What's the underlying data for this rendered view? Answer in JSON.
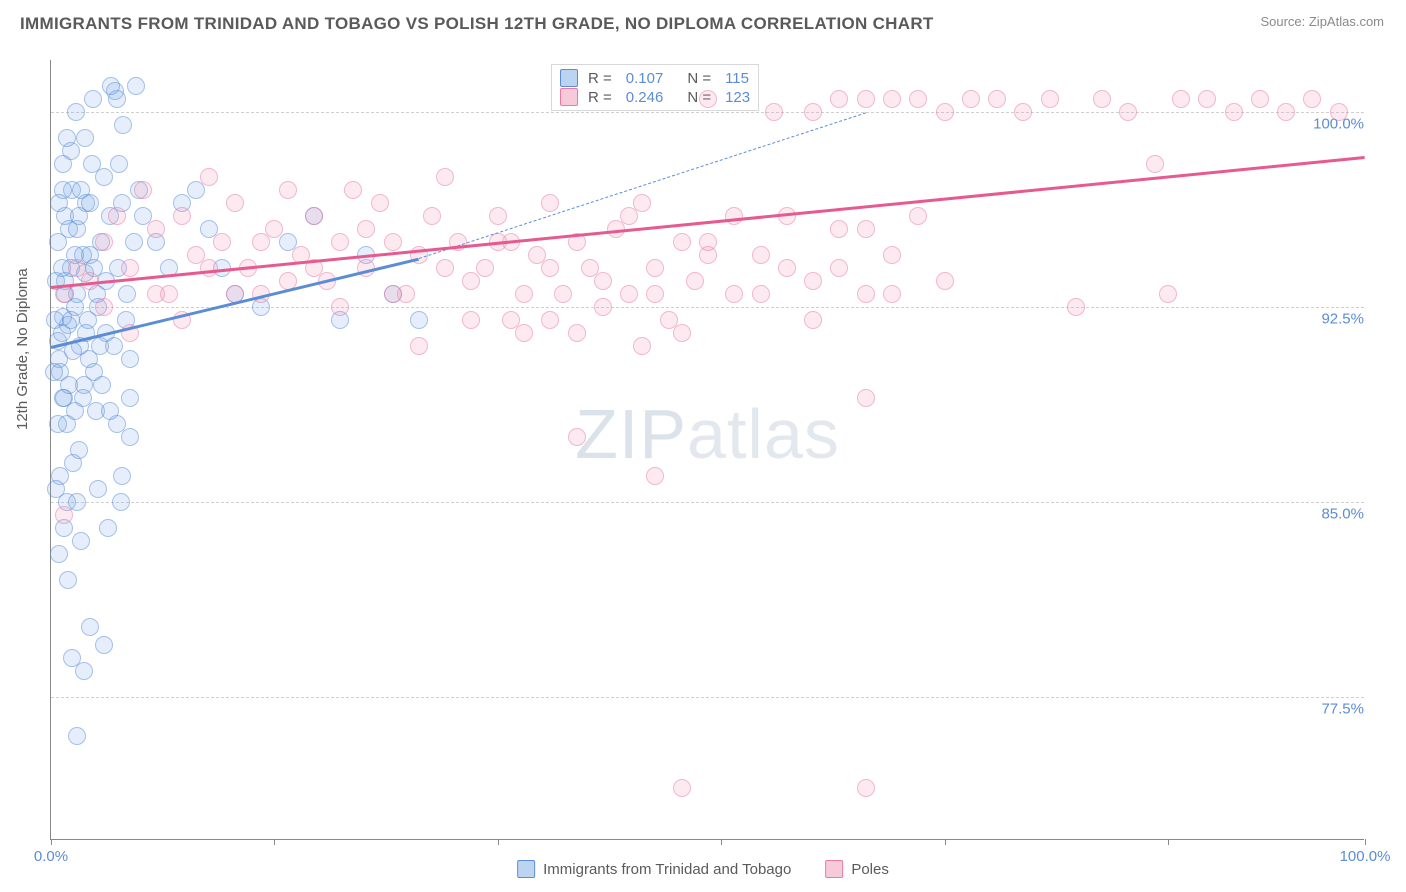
{
  "title": "IMMIGRANTS FROM TRINIDAD AND TOBAGO VS POLISH 12TH GRADE, NO DIPLOMA CORRELATION CHART",
  "source": "Source: ZipAtlas.com",
  "watermark_left": "ZIP",
  "watermark_right": "atlas",
  "chart": {
    "type": "scatter",
    "ylabel": "12th Grade, No Diploma",
    "xlim": [
      0,
      100
    ],
    "ylim": [
      72,
      102
    ],
    "xtick_positions": [
      0,
      17,
      34,
      51,
      68,
      85,
      100
    ],
    "xtick_labels": {
      "0": "0.0%",
      "100": "100.0%"
    },
    "yticks": [
      77.5,
      85.0,
      92.5,
      100.0
    ],
    "ytick_labels": [
      "77.5%",
      "85.0%",
      "92.5%",
      "100.0%"
    ],
    "grid_color": "#cfcfcf",
    "background_color": "#ffffff",
    "axis_color": "#888888",
    "tick_label_color": "#5b8dd6",
    "label_color": "#5a5a5a",
    "label_fontsize": 15,
    "title_fontsize": 17,
    "marker_radius": 9,
    "marker_opacity": 0.55,
    "line_width": 2.5
  },
  "series": [
    {
      "id": "a",
      "name": "Immigrants from Trinidad and Tobago",
      "color": "#5b8dd6",
      "fill": "rgba(120,170,230,0.35)",
      "R": "0.107",
      "N": "115",
      "trend": {
        "x1": 0,
        "y1": 91.0,
        "x2": 28,
        "y2": 94.4,
        "dash_x2": 62,
        "dash_y2": 100.0
      },
      "points": [
        [
          0.5,
          91.2
        ],
        [
          0.7,
          90.0
        ],
        [
          0.9,
          92.1
        ],
        [
          1.1,
          93.5
        ],
        [
          1.0,
          89.0
        ],
        [
          1.3,
          91.8
        ],
        [
          1.5,
          94.0
        ],
        [
          1.2,
          88.0
        ],
        [
          1.8,
          92.5
        ],
        [
          0.6,
          90.5
        ],
        [
          2.0,
          93.0
        ],
        [
          1.4,
          95.5
        ],
        [
          1.6,
          97.0
        ],
        [
          1.1,
          96.0
        ],
        [
          0.8,
          94.0
        ],
        [
          2.2,
          91.0
        ],
        [
          2.5,
          89.5
        ],
        [
          2.8,
          92.0
        ],
        [
          3.0,
          94.5
        ],
        [
          3.3,
          90.0
        ],
        [
          3.5,
          93.0
        ],
        [
          3.8,
          95.0
        ],
        [
          4.0,
          97.5
        ],
        [
          4.2,
          91.5
        ],
        [
          4.5,
          96.0
        ],
        [
          4.9,
          100.8
        ],
        [
          5.2,
          98.0
        ],
        [
          5.5,
          99.5
        ],
        [
          5.8,
          93.0
        ],
        [
          6.0,
          90.5
        ],
        [
          6.3,
          95.0
        ],
        [
          6.7,
          97.0
        ],
        [
          5.0,
          100.5
        ],
        [
          4.6,
          101.0
        ],
        [
          3.2,
          100.5
        ],
        [
          2.6,
          99.0
        ],
        [
          1.9,
          100.0
        ],
        [
          1.5,
          98.5
        ],
        [
          0.9,
          97.0
        ],
        [
          1.2,
          85.0
        ],
        [
          1.7,
          86.5
        ],
        [
          2.1,
          87.0
        ],
        [
          0.7,
          86.0
        ],
        [
          1.0,
          84.0
        ],
        [
          0.6,
          83.0
        ],
        [
          1.3,
          82.0
        ],
        [
          0.4,
          85.5
        ],
        [
          1.8,
          88.5
        ],
        [
          0.5,
          88.0
        ],
        [
          0.9,
          89.0
        ],
        [
          2.4,
          94.5
        ],
        [
          2.7,
          96.5
        ],
        [
          3.1,
          98.0
        ],
        [
          3.4,
          88.5
        ],
        [
          3.7,
          91.0
        ],
        [
          5.0,
          88.0
        ],
        [
          5.4,
          86.0
        ],
        [
          6.0,
          87.5
        ],
        [
          2.0,
          85.0
        ],
        [
          2.3,
          83.5
        ],
        [
          4.3,
          84.0
        ],
        [
          3.6,
          85.5
        ],
        [
          3.0,
          80.2
        ],
        [
          4.0,
          79.5
        ],
        [
          2.5,
          78.5
        ],
        [
          1.6,
          79.0
        ],
        [
          5.3,
          85.0
        ],
        [
          0.3,
          92.0
        ],
        [
          0.4,
          93.5
        ],
        [
          0.2,
          90.0
        ],
        [
          0.5,
          95.0
        ],
        [
          0.8,
          91.5
        ],
        [
          1.1,
          93.0
        ],
        [
          1.4,
          89.5
        ],
        [
          1.7,
          90.8
        ],
        [
          2.0,
          95.5
        ],
        [
          2.3,
          97.0
        ],
        [
          2.6,
          93.8
        ],
        [
          2.9,
          90.5
        ],
        [
          0.6,
          96.5
        ],
        [
          0.9,
          98.0
        ],
        [
          1.2,
          99.0
        ],
        [
          1.5,
          92.0
        ],
        [
          1.8,
          94.5
        ],
        [
          2.1,
          96.0
        ],
        [
          2.4,
          89.0
        ],
        [
          2.7,
          91.5
        ],
        [
          3.0,
          96.5
        ],
        [
          3.3,
          94.0
        ],
        [
          3.6,
          92.5
        ],
        [
          3.9,
          89.5
        ],
        [
          4.2,
          93.5
        ],
        [
          4.5,
          88.5
        ],
        [
          4.8,
          91.0
        ],
        [
          5.1,
          94.0
        ],
        [
          5.4,
          96.5
        ],
        [
          5.7,
          92.0
        ],
        [
          6.0,
          89.0
        ],
        [
          7.0,
          96.0
        ],
        [
          8.0,
          95.0
        ],
        [
          9.0,
          94.0
        ],
        [
          10.0,
          96.5
        ],
        [
          11.0,
          97.0
        ],
        [
          12.0,
          95.5
        ],
        [
          13.0,
          94.0
        ],
        [
          14.0,
          93.0
        ],
        [
          16.0,
          92.5
        ],
        [
          18.0,
          95.0
        ],
        [
          20.0,
          96.0
        ],
        [
          22.0,
          92.0
        ],
        [
          24.0,
          94.5
        ],
        [
          26.0,
          93.0
        ],
        [
          28.0,
          92.0
        ],
        [
          6.5,
          101.0
        ],
        [
          2.0,
          76.0
        ]
      ]
    },
    {
      "id": "b",
      "name": "Poles",
      "color": "#e65a8f",
      "fill": "rgba(240,150,180,0.35)",
      "R": "0.246",
      "N": "123",
      "trend": {
        "x1": 0,
        "y1": 93.3,
        "x2": 100,
        "y2": 98.3
      },
      "points": [
        [
          1.0,
          93.0
        ],
        [
          2.0,
          94.0
        ],
        [
          3.0,
          93.5
        ],
        [
          4.0,
          95.0
        ],
        [
          5.0,
          96.0
        ],
        [
          6.0,
          94.0
        ],
        [
          7.0,
          97.0
        ],
        [
          8.0,
          95.5
        ],
        [
          9.0,
          93.0
        ],
        [
          10.0,
          96.0
        ],
        [
          11.0,
          94.5
        ],
        [
          12.0,
          97.5
        ],
        [
          13.0,
          95.0
        ],
        [
          14.0,
          96.5
        ],
        [
          15.0,
          94.0
        ],
        [
          16.0,
          93.0
        ],
        [
          17.0,
          95.5
        ],
        [
          18.0,
          97.0
        ],
        [
          19.0,
          94.5
        ],
        [
          20.0,
          96.0
        ],
        [
          21.0,
          93.5
        ],
        [
          22.0,
          95.0
        ],
        [
          23.0,
          97.0
        ],
        [
          24.0,
          94.0
        ],
        [
          25.0,
          96.5
        ],
        [
          26.0,
          95.0
        ],
        [
          27.0,
          93.0
        ],
        [
          28.0,
          94.5
        ],
        [
          29.0,
          96.0
        ],
        [
          30.0,
          97.5
        ],
        [
          31.0,
          95.0
        ],
        [
          32.0,
          93.5
        ],
        [
          33.0,
          94.0
        ],
        [
          34.0,
          96.0
        ],
        [
          35.0,
          95.0
        ],
        [
          36.0,
          93.0
        ],
        [
          37.0,
          94.5
        ],
        [
          38.0,
          92.0
        ],
        [
          39.0,
          93.0
        ],
        [
          40.0,
          91.5
        ],
        [
          41.0,
          94.0
        ],
        [
          42.0,
          92.5
        ],
        [
          43.0,
          95.5
        ],
        [
          44.0,
          93.0
        ],
        [
          45.0,
          91.0
        ],
        [
          46.0,
          94.0
        ],
        [
          47.0,
          92.0
        ],
        [
          48.0,
          95.0
        ],
        [
          49.0,
          93.5
        ],
        [
          50.0,
          94.5
        ],
        [
          52.0,
          96.0
        ],
        [
          54.0,
          93.0
        ],
        [
          56.0,
          94.0
        ],
        [
          58.0,
          92.0
        ],
        [
          60.0,
          95.5
        ],
        [
          62.0,
          93.0
        ],
        [
          64.0,
          94.5
        ],
        [
          66.0,
          96.0
        ],
        [
          68.0,
          93.5
        ],
        [
          70.0,
          100.5
        ],
        [
          72.0,
          100.5
        ],
        [
          74.0,
          100.0
        ],
        [
          76.0,
          100.5
        ],
        [
          78.0,
          92.5
        ],
        [
          80.0,
          100.5
        ],
        [
          82.0,
          100.0
        ],
        [
          84.0,
          98.0
        ],
        [
          86.0,
          100.5
        ],
        [
          88.0,
          100.5
        ],
        [
          90.0,
          100.0
        ],
        [
          92.0,
          100.5
        ],
        [
          94.0,
          100.0
        ],
        [
          96.0,
          100.5
        ],
        [
          98.0,
          100.0
        ],
        [
          64.0,
          100.5
        ],
        [
          60.0,
          100.5
        ],
        [
          55.0,
          100.0
        ],
        [
          50.0,
          100.5
        ],
        [
          45.0,
          96.5
        ],
        [
          66.0,
          100.5
        ],
        [
          68.0,
          100.0
        ],
        [
          62.0,
          100.5
        ],
        [
          58.0,
          100.0
        ],
        [
          38.0,
          96.5
        ],
        [
          40.0,
          87.5
        ],
        [
          48.0,
          74.0
        ],
        [
          62.0,
          74.0
        ],
        [
          62.0,
          89.0
        ],
        [
          46.0,
          86.0
        ],
        [
          35.0,
          92.0
        ],
        [
          1.0,
          84.5
        ],
        [
          85.0,
          93.0
        ],
        [
          4.0,
          92.5
        ],
        [
          6.0,
          91.5
        ],
        [
          8.0,
          93.0
        ],
        [
          10.0,
          92.0
        ],
        [
          12.0,
          94.0
        ],
        [
          14.0,
          93.0
        ],
        [
          16.0,
          95.0
        ],
        [
          18.0,
          93.5
        ],
        [
          20.0,
          94.0
        ],
        [
          22.0,
          92.5
        ],
        [
          24.0,
          95.5
        ],
        [
          26.0,
          93.0
        ],
        [
          28.0,
          91.0
        ],
        [
          30.0,
          94.0
        ],
        [
          32.0,
          92.0
        ],
        [
          34.0,
          95.0
        ],
        [
          36.0,
          91.5
        ],
        [
          38.0,
          94.0
        ],
        [
          40.0,
          95.0
        ],
        [
          42.0,
          93.5
        ],
        [
          44.0,
          96.0
        ],
        [
          46.0,
          93.0
        ],
        [
          48.0,
          91.5
        ],
        [
          50.0,
          95.0
        ],
        [
          52.0,
          93.0
        ],
        [
          54.0,
          94.5
        ],
        [
          56.0,
          96.0
        ],
        [
          58.0,
          93.5
        ],
        [
          60.0,
          94.0
        ],
        [
          62.0,
          95.5
        ],
        [
          64.0,
          93.0
        ]
      ]
    }
  ],
  "stat_box": {
    "rows": [
      {
        "series": "a",
        "r_label": "R =",
        "r_val": "0.107",
        "n_label": "N =",
        "n_val": "115"
      },
      {
        "series": "b",
        "r_label": "R =",
        "r_val": "0.246",
        "n_label": "N =",
        "n_val": "123"
      }
    ]
  },
  "legend": {
    "items": [
      {
        "series": "a",
        "label": "Immigrants from Trinidad and Tobago"
      },
      {
        "series": "b",
        "label": "Poles"
      }
    ]
  }
}
